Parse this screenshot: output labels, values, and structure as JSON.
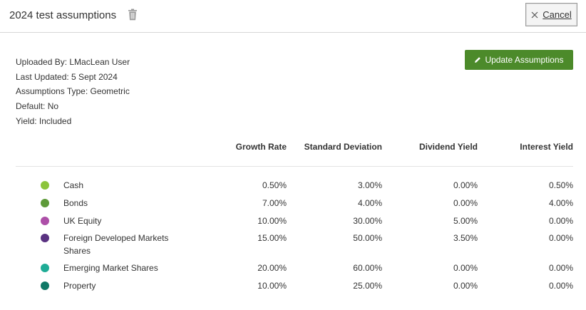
{
  "header": {
    "title": "2024 test assumptions",
    "cancel_label": "Cancel"
  },
  "meta": {
    "uploaded_by": "Uploaded By: LMacLean User",
    "last_updated": "Last Updated: 5 Sept 2024",
    "assumptions_type": "Assumptions Type: Geometric",
    "default": "Default: No",
    "yield": "Yield: Included"
  },
  "actions": {
    "update_label": "Update Assumptions"
  },
  "table": {
    "columns": [
      "Growth Rate",
      "Standard Deviation",
      "Dividend Yield",
      "Interest Yield"
    ],
    "rows": [
      {
        "name": "Cash",
        "color": "#8cc43c",
        "growth": "0.50%",
        "sd": "3.00%",
        "dividend": "0.00%",
        "interest": "0.50%"
      },
      {
        "name": "Bonds",
        "color": "#5e9a3a",
        "growth": "7.00%",
        "sd": "4.00%",
        "dividend": "0.00%",
        "interest": "4.00%"
      },
      {
        "name": "UK Equity",
        "color": "#ad4fa8",
        "growth": "10.00%",
        "sd": "30.00%",
        "dividend": "5.00%",
        "interest": "0.00%"
      },
      {
        "name": "Foreign Developed Markets Shares",
        "color": "#5a3281",
        "growth": "15.00%",
        "sd": "50.00%",
        "dividend": "3.50%",
        "interest": "0.00%"
      },
      {
        "name": "Emerging Market Shares",
        "color": "#1fac96",
        "growth": "20.00%",
        "sd": "60.00%",
        "dividend": "0.00%",
        "interest": "0.00%"
      },
      {
        "name": "Property",
        "color": "#0f7866",
        "growth": "10.00%",
        "sd": "25.00%",
        "dividend": "0.00%",
        "interest": "0.00%"
      }
    ]
  }
}
